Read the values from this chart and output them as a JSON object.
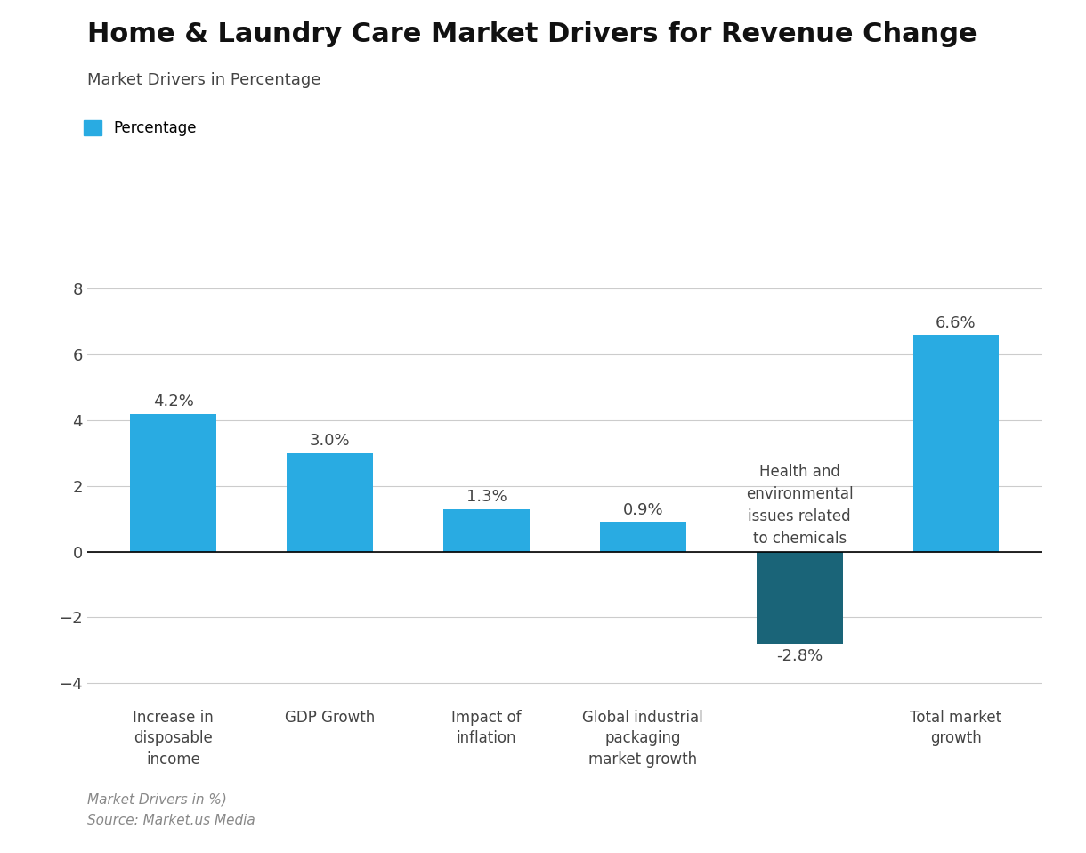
{
  "title": "Home & Laundry Care Market Drivers for Revenue Change",
  "subtitle": "Market Drivers in Percentage",
  "legend_label": "Percentage",
  "footer_line1": "Market Drivers in %)",
  "footer_line2": "Source: Market.us Media",
  "categories": [
    "Increase in\ndisposable\nincome",
    "GDP Growth",
    "Impact of\ninflation",
    "Global industrial\npackaging\nmarket growth",
    "Health and\nenvironmental\nissues related\nto chemicals",
    "Total market\ngrowth"
  ],
  "values": [
    4.2,
    3.0,
    1.3,
    0.9,
    -2.8,
    6.6
  ],
  "bar_colors": [
    "#29abe2",
    "#29abe2",
    "#29abe2",
    "#29abe2",
    "#1a6478",
    "#29abe2"
  ],
  "value_labels": [
    "4.2%",
    "3.0%",
    "1.3%",
    "0.9%",
    "-2.8%",
    "6.6%"
  ],
  "ylim": [
    -4.5,
    9.0
  ],
  "yticks": [
    -4,
    -2,
    0,
    2,
    4,
    6,
    8
  ],
  "background_color": "#ffffff",
  "title_fontsize": 22,
  "subtitle_fontsize": 13,
  "label_fontsize": 12,
  "value_fontsize": 13,
  "footer_fontsize": 11
}
